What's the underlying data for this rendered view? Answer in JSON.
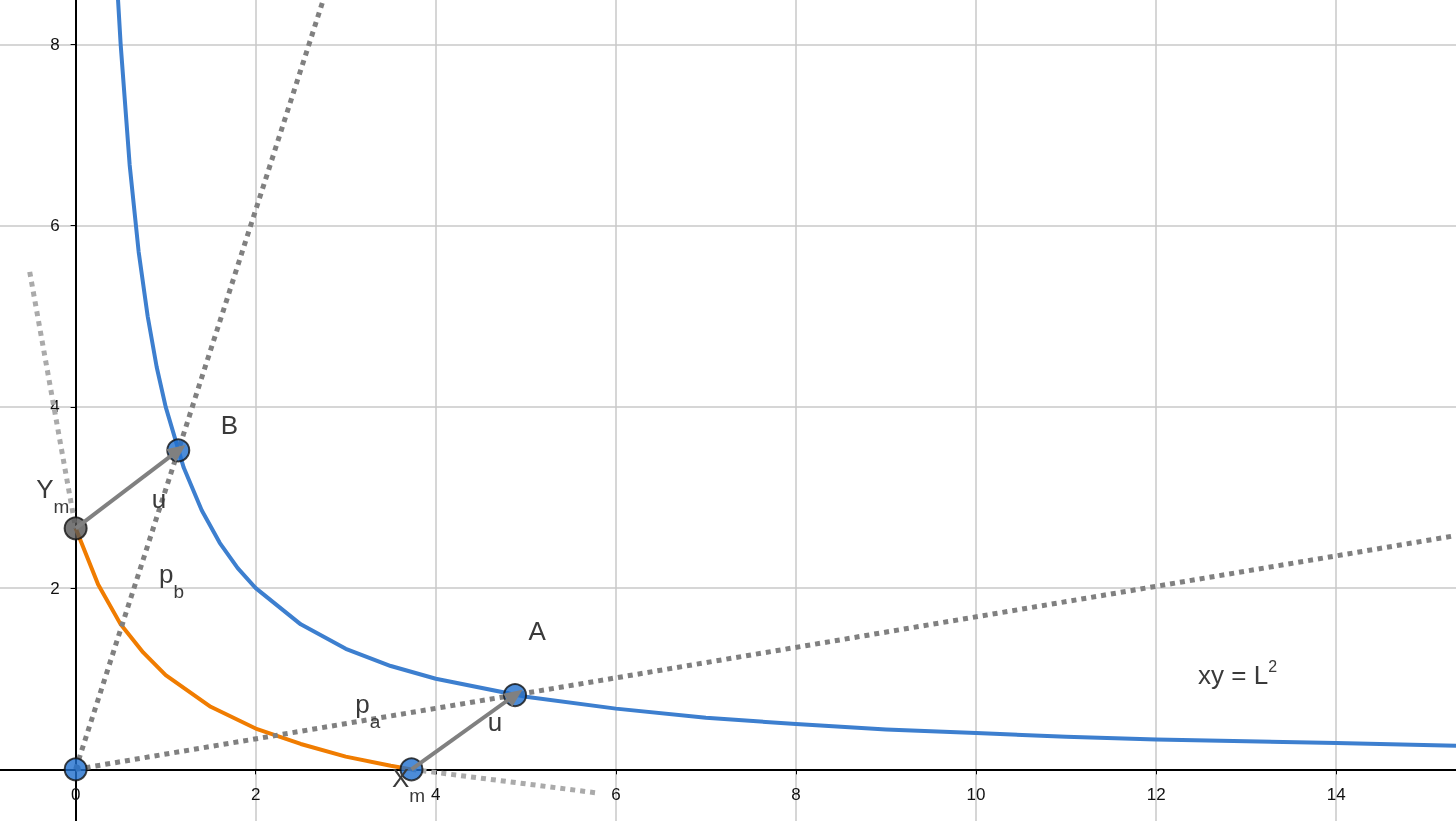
{
  "chart_data": {
    "type": "line",
    "xlim": [
      -0.84,
      15.33
    ],
    "ylim": [
      -0.57,
      8.49
    ],
    "xticks": [
      0,
      2,
      4,
      6,
      8,
      10,
      12,
      14
    ],
    "yticks": [
      2,
      4,
      6,
      8
    ],
    "grid": true,
    "series": [
      {
        "color": "#3d7fcf",
        "line_style": "solid",
        "marker": "none",
        "x": [
          0.471,
          0.5,
          0.6,
          0.7,
          0.8,
          0.9,
          1,
          1.2,
          1.4,
          1.6,
          1.8,
          2,
          2.5,
          3,
          3.5,
          4,
          5,
          6,
          7,
          8,
          9,
          10,
          11,
          12,
          13,
          14,
          15.33
        ],
        "values": [
          8.49,
          8,
          6.67,
          5.71,
          5,
          4.44,
          4,
          3.33,
          2.86,
          2.5,
          2.22,
          2,
          1.6,
          1.33,
          1.14,
          1,
          0.8,
          0.67,
          0.57,
          0.5,
          0.44,
          0.4,
          0.36,
          0.33,
          0.31,
          0.29,
          0.26
        ]
      },
      {
        "color": "#f07c00",
        "line_style": "solid",
        "marker": "none",
        "x": [
          0,
          0.25,
          0.5,
          0.75,
          1,
          1.5,
          2,
          2.5,
          3,
          3.5,
          3.73
        ],
        "values": [
          2.66,
          2.04,
          1.6,
          1.29,
          1.04,
          0.69,
          0.45,
          0.28,
          0.14,
          0.04,
          0
        ]
      },
      {
        "color": "#808080",
        "line_style": "dotted",
        "marker": "none",
        "x": [
          0,
          2.75
        ],
        "values": [
          0,
          8.49
        ]
      },
      {
        "color": "#808080",
        "line_style": "dotted",
        "marker": "none",
        "x": [
          0,
          15.33
        ],
        "values": [
          0,
          2.58
        ]
      },
      {
        "color": "#aaaaaa",
        "line_style": "dotted",
        "marker": "none",
        "x": [
          -0.51,
          0
        ],
        "values": [
          5.49,
          2.66
        ]
      },
      {
        "color": "#aaaaaa",
        "line_style": "dotted",
        "marker": "none",
        "x": [
          3.73,
          5.79
        ],
        "values": [
          0,
          -0.26
        ]
      },
      {
        "color": "#808080",
        "line_style": "solid",
        "marker": "triangle",
        "x": [
          3.73,
          4.88
        ],
        "values": [
          0,
          0.82
        ]
      },
      {
        "color": "#808080",
        "line_style": "solid",
        "marker": "triangle",
        "x": [
          0,
          1.14
        ],
        "values": [
          2.66,
          3.52
        ]
      },
      {
        "type": "scatter",
        "marker": "circle",
        "colors": [
          "#1f6fce",
          "#1f6fce",
          "#1f6fce",
          "#1f6fce",
          "#555555"
        ],
        "x": [
          0,
          4.88,
          1.14,
          3.73,
          0
        ],
        "values": [
          0,
          0.82,
          3.52,
          0,
          2.66
        ]
      }
    ],
    "annotations": [
      {
        "text": "A",
        "x": 4.88,
        "y": 0.82
      },
      {
        "text": "B",
        "x": 1.14,
        "y": 3.52
      },
      {
        "text": "Y$_{m}$",
        "x": 0,
        "y": 2.66
      },
      {
        "text": "X$_{m}$",
        "x": 3.73,
        "y": 0
      },
      {
        "text": "u",
        "x": 4.3,
        "y": 0.41
      },
      {
        "text": "u",
        "x": 0.57,
        "y": 3.09
      },
      {
        "text": "p$_{b}$",
        "x": 0.62,
        "y": 1.93
      },
      {
        "text": "p$_{a}$",
        "x": 3.02,
        "y": 0.51
      },
      "xy = L$^{2}$"
    ]
  }
}
